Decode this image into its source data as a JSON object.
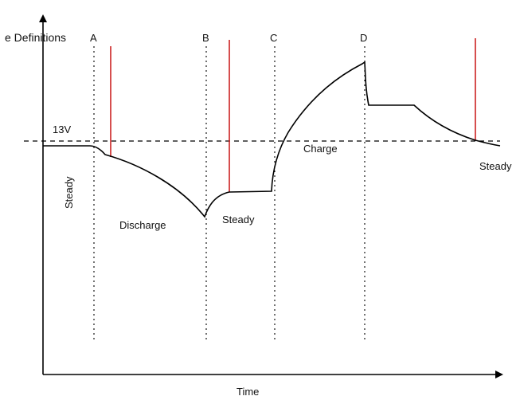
{
  "diagram": {
    "title": "e Definitions",
    "x_axis_label": "Time",
    "reference_label": "13V",
    "points": [
      "A",
      "B",
      "C",
      "D"
    ],
    "regions": {
      "steady_left": "Steady",
      "discharge": "Discharge",
      "steady_middle": "Steady",
      "charge": "Charge",
      "steady_right": "Steady"
    },
    "colors": {
      "curve": "#000000",
      "marker": "#cc2222",
      "axis": "#000000"
    }
  }
}
